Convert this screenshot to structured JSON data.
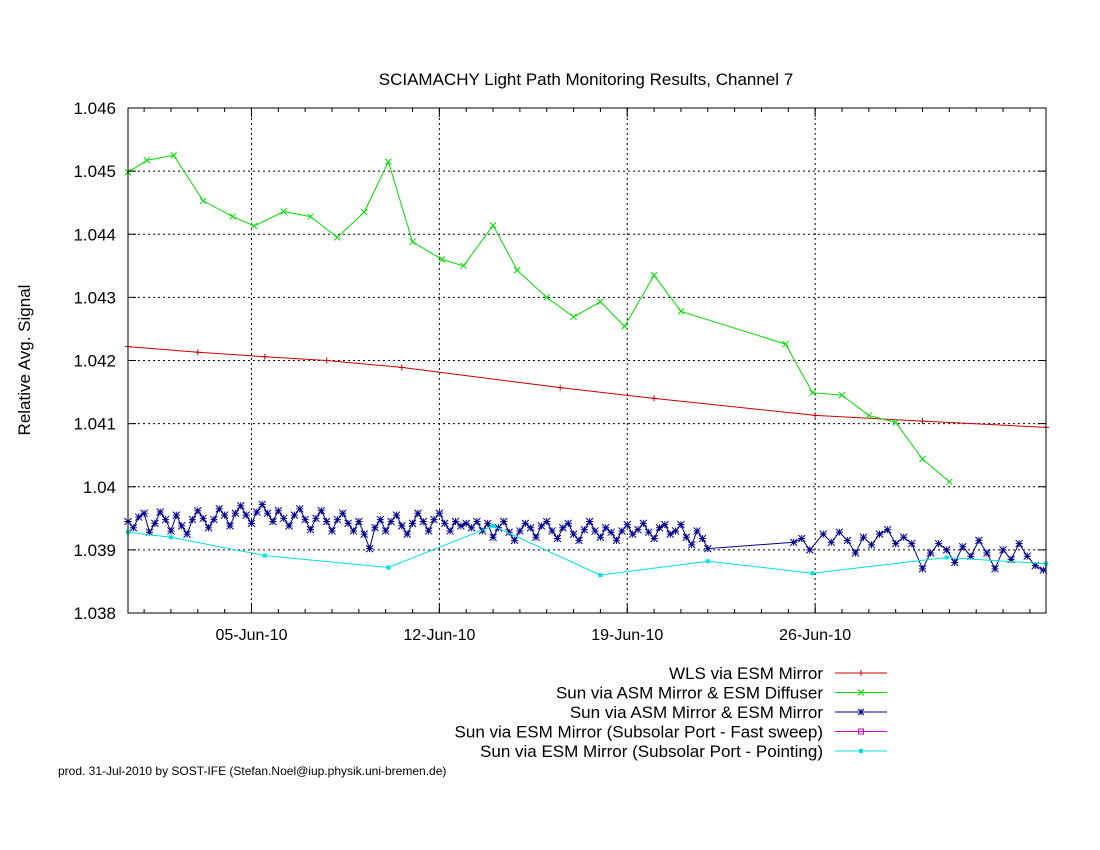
{
  "chart_data": {
    "type": "line",
    "title": "SCIAMACHY Light Path Monitoring Results, Channel 7",
    "xlabel": "",
    "ylabel": "Relative Avg. Signal",
    "x_unit": "date (day of month 2010; 1 = 01-Jun-10)",
    "xlim": [
      0.4,
      34.6
    ],
    "ylim": [
      1.038,
      1.046
    ],
    "grid": true,
    "legend_position": "below-right",
    "xticks": [
      {
        "x": 5,
        "label": "05-Jun-10"
      },
      {
        "x": 12,
        "label": "12-Jun-10"
      },
      {
        "x": 19,
        "label": "19-Jun-10"
      },
      {
        "x": 26,
        "label": "26-Jun-10"
      }
    ],
    "yticks": [
      {
        "y": 1.038,
        "label": "1.038"
      },
      {
        "y": 1.039,
        "label": "1.039"
      },
      {
        "y": 1.04,
        "label": "1.04"
      },
      {
        "y": 1.041,
        "label": "1.041"
      },
      {
        "y": 1.042,
        "label": "1.042"
      },
      {
        "y": 1.043,
        "label": "1.043"
      },
      {
        "y": 1.044,
        "label": "1.044"
      },
      {
        "y": 1.045,
        "label": "1.045"
      },
      {
        "y": 1.046,
        "label": "1.046"
      }
    ],
    "series": [
      {
        "name": "WLS via ESM Mirror",
        "color": "#cc0000",
        "marker": "plus",
        "points": [
          [
            0.4,
            1.04222
          ],
          [
            3.0,
            1.04213
          ],
          [
            5.5,
            1.04206
          ],
          [
            7.8,
            1.042
          ],
          [
            10.6,
            1.04189
          ],
          [
            16.5,
            1.04157
          ],
          [
            20.0,
            1.0414
          ],
          [
            26.0,
            1.04113
          ],
          [
            30.0,
            1.04104
          ],
          [
            34.6,
            1.04094
          ]
        ]
      },
      {
        "name": "Sun via ASM Mirror & ESM Diffuser",
        "color": "#00dd00",
        "marker": "x",
        "points": [
          [
            0.4,
            1.04498
          ],
          [
            1.1,
            1.04517
          ],
          [
            2.1,
            1.04525
          ],
          [
            3.2,
            1.04453
          ],
          [
            4.3,
            1.04428
          ],
          [
            5.1,
            1.04413
          ],
          [
            6.2,
            1.04436
          ],
          [
            7.2,
            1.04428
          ],
          [
            8.2,
            1.04395
          ],
          [
            9.2,
            1.04435
          ],
          [
            10.1,
            1.04515
          ],
          [
            11.0,
            1.04388
          ],
          [
            12.1,
            1.0436
          ],
          [
            12.9,
            1.0435
          ],
          [
            14.0,
            1.04414
          ],
          [
            14.9,
            1.04343
          ],
          [
            16.0,
            1.043
          ],
          [
            17.0,
            1.04269
          ],
          [
            18.0,
            1.04293
          ],
          [
            18.9,
            1.04254
          ],
          [
            20.0,
            1.04335
          ],
          [
            21.0,
            1.04278
          ],
          [
            24.9,
            1.04226
          ],
          [
            25.9,
            1.04149
          ],
          [
            27.0,
            1.04145
          ],
          [
            28.0,
            1.04113
          ],
          [
            29.0,
            1.04102
          ],
          [
            30.0,
            1.04044
          ],
          [
            31.0,
            1.04008
          ]
        ]
      },
      {
        "name": "Sun via ASM Mirror & ESM Mirror",
        "color": "#00008b",
        "marker": "star",
        "points": [
          [
            0.4,
            1.03945
          ],
          [
            0.6,
            1.03935
          ],
          [
            0.8,
            1.03952
          ],
          [
            1.0,
            1.03958
          ],
          [
            1.2,
            1.03928
          ],
          [
            1.4,
            1.03942
          ],
          [
            1.6,
            1.0396
          ],
          [
            1.8,
            1.03948
          ],
          [
            2.0,
            1.0393
          ],
          [
            2.2,
            1.03955
          ],
          [
            2.4,
            1.03938
          ],
          [
            2.6,
            1.03925
          ],
          [
            2.8,
            1.03948
          ],
          [
            3.0,
            1.03962
          ],
          [
            3.2,
            1.0395
          ],
          [
            3.4,
            1.03935
          ],
          [
            3.6,
            1.03948
          ],
          [
            3.8,
            1.03965
          ],
          [
            4.0,
            1.03955
          ],
          [
            4.2,
            1.03938
          ],
          [
            4.4,
            1.03958
          ],
          [
            4.6,
            1.0397
          ],
          [
            4.8,
            1.03955
          ],
          [
            5.0,
            1.03942
          ],
          [
            5.2,
            1.0396
          ],
          [
            5.4,
            1.03972
          ],
          [
            5.6,
            1.03958
          ],
          [
            5.8,
            1.03945
          ],
          [
            6.0,
            1.03962
          ],
          [
            6.2,
            1.0395
          ],
          [
            6.4,
            1.03938
          ],
          [
            6.6,
            1.03955
          ],
          [
            6.8,
            1.03965
          ],
          [
            7.0,
            1.03948
          ],
          [
            7.2,
            1.03932
          ],
          [
            7.4,
            1.0395
          ],
          [
            7.6,
            1.03962
          ],
          [
            7.8,
            1.03945
          ],
          [
            8.0,
            1.0393
          ],
          [
            8.2,
            1.03948
          ],
          [
            8.4,
            1.03958
          ],
          [
            8.6,
            1.03942
          ],
          [
            8.8,
            1.0393
          ],
          [
            9.0,
            1.03945
          ],
          [
            9.2,
            1.03925
          ],
          [
            9.4,
            1.03902
          ],
          [
            9.6,
            1.03935
          ],
          [
            9.8,
            1.03948
          ],
          [
            10.0,
            1.0393
          ],
          [
            10.2,
            1.03945
          ],
          [
            10.4,
            1.03955
          ],
          [
            10.6,
            1.03938
          ],
          [
            10.8,
            1.03925
          ],
          [
            11.0,
            1.03942
          ],
          [
            11.2,
            1.03958
          ],
          [
            11.4,
            1.03945
          ],
          [
            11.6,
            1.0393
          ],
          [
            11.8,
            1.03948
          ],
          [
            12.0,
            1.03958
          ],
          [
            12.2,
            1.03942
          ],
          [
            12.4,
            1.0393
          ],
          [
            12.6,
            1.03945
          ],
          [
            12.8,
            1.03938
          ],
          [
            13.0,
            1.03942
          ],
          [
            13.2,
            1.03935
          ],
          [
            13.4,
            1.03945
          ],
          [
            13.6,
            1.0393
          ],
          [
            13.8,
            1.03942
          ],
          [
            14.0,
            1.0392
          ],
          [
            14.2,
            1.03935
          ],
          [
            14.4,
            1.03945
          ],
          [
            14.6,
            1.03928
          ],
          [
            14.8,
            1.03915
          ],
          [
            15.0,
            1.0393
          ],
          [
            15.2,
            1.03942
          ],
          [
            15.4,
            1.03935
          ],
          [
            15.6,
            1.0392
          ],
          [
            15.8,
            1.03938
          ],
          [
            16.0,
            1.03945
          ],
          [
            16.2,
            1.0393
          ],
          [
            16.4,
            1.03918
          ],
          [
            16.6,
            1.03935
          ],
          [
            16.8,
            1.03942
          ],
          [
            17.0,
            1.03925
          ],
          [
            17.2,
            1.03915
          ],
          [
            17.4,
            1.03932
          ],
          [
            17.6,
            1.03945
          ],
          [
            17.8,
            1.0393
          ],
          [
            18.0,
            1.0392
          ],
          [
            18.2,
            1.03935
          ],
          [
            18.4,
            1.03928
          ],
          [
            18.6,
            1.03915
          ],
          [
            18.8,
            1.0393
          ],
          [
            19.0,
            1.0394
          ],
          [
            19.2,
            1.03925
          ],
          [
            19.4,
            1.03932
          ],
          [
            19.6,
            1.03942
          ],
          [
            19.8,
            1.03928
          ],
          [
            20.0,
            1.03918
          ],
          [
            20.2,
            1.03935
          ],
          [
            20.4,
            1.0394
          ],
          [
            20.6,
            1.03925
          ],
          [
            20.8,
            1.0393
          ],
          [
            21.0,
            1.0394
          ],
          [
            21.2,
            1.0392
          ],
          [
            21.4,
            1.03908
          ],
          [
            21.6,
            1.0393
          ],
          [
            21.8,
            1.03918
          ],
          [
            22.0,
            1.03902
          ],
          [
            25.2,
            1.03912
          ],
          [
            25.5,
            1.03918
          ],
          [
            25.8,
            1.039
          ],
          [
            26.3,
            1.03925
          ],
          [
            26.6,
            1.03912
          ],
          [
            26.9,
            1.03928
          ],
          [
            27.2,
            1.03915
          ],
          [
            27.5,
            1.03895
          ],
          [
            27.8,
            1.0392
          ],
          [
            28.1,
            1.03908
          ],
          [
            28.4,
            1.03925
          ],
          [
            28.7,
            1.03932
          ],
          [
            29.0,
            1.0391
          ],
          [
            29.3,
            1.0392
          ],
          [
            29.6,
            1.0391
          ],
          [
            30.0,
            1.0387
          ],
          [
            30.3,
            1.03895
          ],
          [
            30.6,
            1.0391
          ],
          [
            30.9,
            1.039
          ],
          [
            31.2,
            1.0388
          ],
          [
            31.5,
            1.03905
          ],
          [
            31.8,
            1.0389
          ],
          [
            32.1,
            1.03915
          ],
          [
            32.4,
            1.03895
          ],
          [
            32.7,
            1.0387
          ],
          [
            33.0,
            1.039
          ],
          [
            33.3,
            1.03885
          ],
          [
            33.6,
            1.0391
          ],
          [
            33.9,
            1.0389
          ],
          [
            34.2,
            1.03875
          ],
          [
            34.5,
            1.03868
          ]
        ]
      },
      {
        "name": "Sun via ESM Mirror (Subsolar Port - Fast sweep)",
        "color": "#cc00cc",
        "marker": "open-square",
        "points": []
      },
      {
        "name": "Sun via ESM Mirror (Subsolar Port - Pointing)",
        "color": "#00e0e0",
        "marker": "filled-square",
        "points": [
          [
            0.4,
            1.03928
          ],
          [
            2.0,
            1.0392
          ],
          [
            5.5,
            1.03891
          ],
          [
            10.1,
            1.03872
          ],
          [
            14.0,
            1.03938
          ],
          [
            18.0,
            1.0386
          ],
          [
            22.0,
            1.03882
          ],
          [
            25.9,
            1.03863
          ],
          [
            30.9,
            1.03888
          ],
          [
            34.6,
            1.03878
          ]
        ]
      }
    ]
  },
  "footer": "prod. 31-Jul-2010 by SOST-IFE (Stefan.Noel@iup.physik.uni-bremen.de)"
}
